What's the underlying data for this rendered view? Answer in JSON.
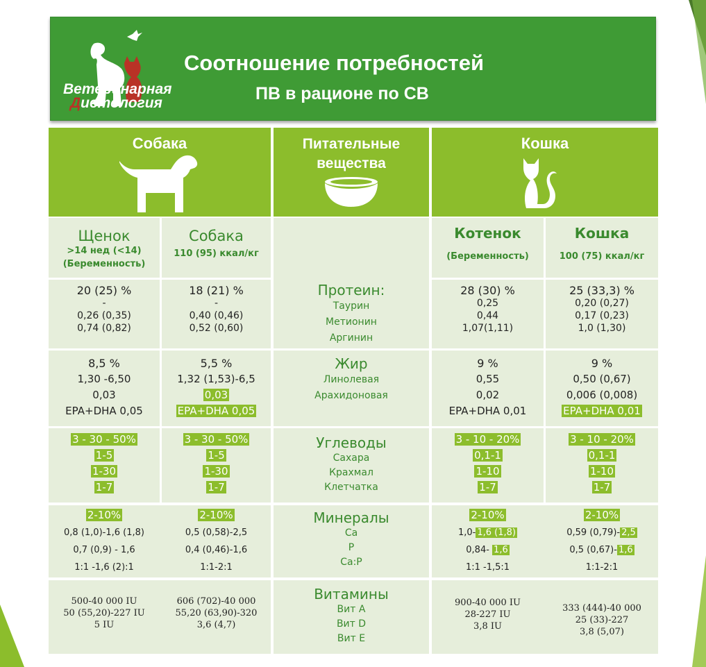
{
  "header": {
    "logo_line1": "Ветеринарная",
    "logo_line2_first": "Д",
    "logo_line2_rest": "иетология",
    "title_line1": "Соотношение потребностей",
    "title_line2": "ПВ в рационе по СВ"
  },
  "columns": {
    "dog": "Собака",
    "nutrients": "Питательные вещества",
    "cat": "Кошка"
  },
  "subheaders": {
    "puppy": {
      "title": "Щенок",
      "line1": ">14 нед (<14)",
      "line2": "(Беременность)"
    },
    "dog": {
      "title": "Собака",
      "line1": "110 (95) ккал/кг"
    },
    "kitten": {
      "title": "Котенок",
      "line1": "(Беременность)"
    },
    "cat": {
      "title": "Кошка",
      "line1": "100 (75) ккал/кг"
    }
  },
  "rows": {
    "protein": {
      "title": "Протеин:",
      "items": [
        "Таурин",
        "Метионин",
        "Аргинин"
      ],
      "puppy": [
        "20 (25) %",
        "-",
        "0,26 (0,35)",
        "0,74 (0,82)"
      ],
      "dog": [
        "18 (21) %",
        "-",
        "0,40 (0,46)",
        "0,52 (0,60)"
      ],
      "kitten": [
        "28 (30) %",
        "0,25",
        "0,44",
        "1,07(1,11)"
      ],
      "cat": [
        "25 (33,3) %",
        "0,20 (0,27)",
        "0,17 (0,23)",
        "1,0 (1,30)"
      ]
    },
    "fat": {
      "title": "Жир",
      "items": [
        "Линолевая",
        "Арахидоновая"
      ],
      "puppy": [
        "8,5 %",
        "1,30 -6,50",
        "0,03",
        "EPA+DHA 0,05"
      ],
      "dog": [
        "5,5 %",
        "1,32 (1,53)-6,5",
        "0,03",
        "EPA+DHA 0,05"
      ],
      "kitten": [
        "9 %",
        "0,55",
        "0,02",
        "EPA+DHA 0,01"
      ],
      "cat": [
        "9 %",
        "0,50 (0,67)",
        "0,006 (0,008)",
        "EPA+DHA 0,01"
      ]
    },
    "carbs": {
      "title": "Углеводы",
      "items": [
        "Сахара",
        "Крахмал",
        "Клетчатка"
      ],
      "puppy": [
        "3 - 30 - 50%",
        "1-5",
        "1-30",
        "1-7"
      ],
      "dog": [
        "3 - 30 - 50%",
        "1-5",
        "1-30",
        "1-7"
      ],
      "kitten": [
        "3 - 10 - 20%",
        "0,1-1",
        "1-10",
        "1-7"
      ],
      "cat": [
        "3 - 10 - 20%",
        "0,1-1",
        "1-10",
        "1-7"
      ]
    },
    "minerals": {
      "title": "Минералы",
      "items": [
        "Ca",
        "P",
        "Ca:P"
      ],
      "puppy": [
        "2-10%",
        "0,8 (1,0)-1,6 (1,8)",
        "0,7 (0,9) - 1,6",
        "1:1 -1,6 (2):1"
      ],
      "dog": [
        "2-10%",
        "0,5 (0,58)-2,5",
        "0,4 (0,46)-1,6",
        "1:1-2:1"
      ],
      "kitten": [
        "2-10%",
        "1,0-",
        "1,6 (1,8)",
        "0,84-",
        "1,6",
        "1:1 -1,5:1"
      ],
      "cat": [
        "2-10%",
        "0,59 (0,79)-",
        "2,5",
        "0,5 (0,67)-",
        "1,6",
        "1:1-2:1"
      ]
    },
    "vitamins": {
      "title": "Витамины",
      "items": [
        "Вит А",
        "Вит D",
        "Вит Е"
      ],
      "puppy": [
        "500-40 000 IU",
        "50 (55,20)-227 IU",
        "5 IU"
      ],
      "dog": [
        "606 (702)-40 000",
        "55,20 (63,90)-320",
        "3,6 (4,7)"
      ],
      "kitten": [
        "900-40 000 IU",
        "28-227 IU",
        "3,8 IU"
      ],
      "cat": [
        "333 (444)-40 000",
        "25 (33)-227",
        "3,8 (5,07)"
      ]
    }
  },
  "colors": {
    "header_green": "#3f9b35",
    "accent_green": "#8cbd2c",
    "cell_bg": "#e6eedb",
    "text_green": "#3a8a2e",
    "logo_red": "#b93226"
  }
}
